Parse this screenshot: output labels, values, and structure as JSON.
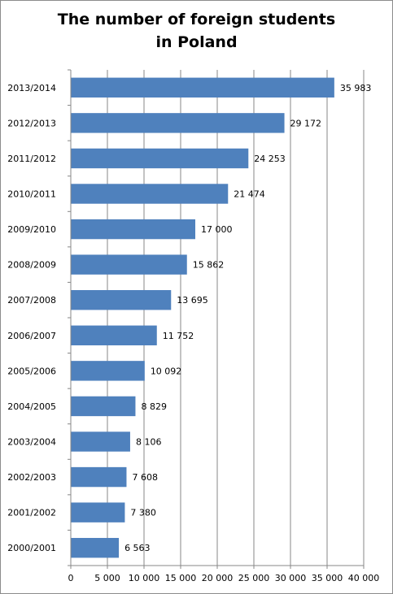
{
  "chart_data": {
    "type": "bar",
    "orientation": "horizontal",
    "title": "The number of foreign students\nin Poland",
    "categories": [
      "2013/2014",
      "2012/2013",
      "2011/2012",
      "2010/2011",
      "2009/2010",
      "2008/2009",
      "2007/2008",
      "2006/2007",
      "2005/2006",
      "2004/2005",
      "2003/2004",
      "2002/2003",
      "2001/2002",
      "2000/2001"
    ],
    "values": [
      35983,
      29172,
      24253,
      21474,
      17000,
      15862,
      13695,
      11752,
      10092,
      8829,
      8106,
      7608,
      7380,
      6563
    ],
    "value_labels": [
      "35 983",
      "29 172",
      "24 253",
      "21 474",
      "17 000",
      "15 862",
      "13 695",
      "11 752",
      "10 092",
      "8 829",
      "8 106",
      "7 608",
      "7 380",
      "6 563"
    ],
    "xlim": [
      0,
      40000
    ],
    "x_ticks": [
      0,
      5000,
      10000,
      15000,
      20000,
      25000,
      30000,
      35000,
      40000
    ],
    "x_tick_labels": [
      "0",
      "5 000",
      "10 000",
      "15 000",
      "20 000",
      "25 000",
      "30 000",
      "35 000",
      "40 000"
    ],
    "grid": true,
    "legend": false,
    "bar_color": "#4f81bd"
  }
}
